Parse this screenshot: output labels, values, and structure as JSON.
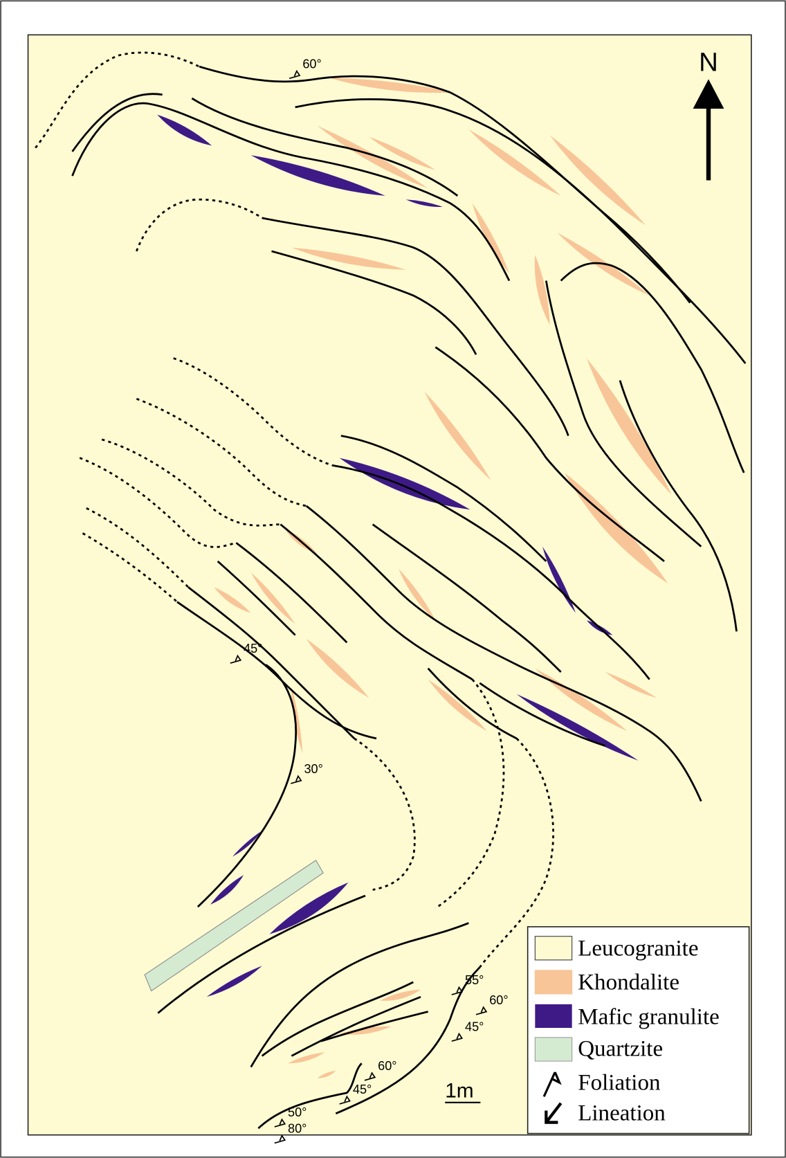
{
  "north": "N",
  "measurements": [
    "60°",
    "45°",
    "30°",
    "55°",
    "60°",
    "45°",
    "60°",
    "45°",
    "50°",
    "80°"
  ],
  "legend": [
    {
      "label": "Leucogranite"
    },
    {
      "label": "Khondalite"
    },
    {
      "label": "Mafic granulite"
    },
    {
      "label": "Quartzite"
    },
    {
      "label": "Foliation"
    },
    {
      "label": "Lineation"
    }
  ],
  "scale": "1m"
}
